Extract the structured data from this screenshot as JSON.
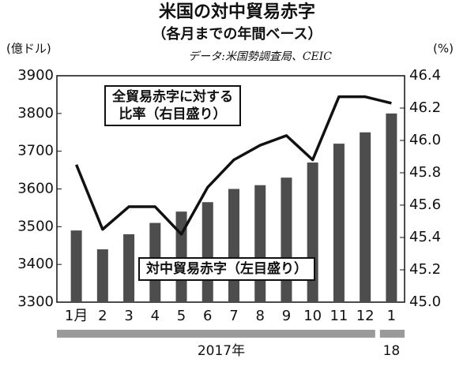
{
  "chart_data": {
    "type": "bar-line",
    "title": "米国の対中貿易赤字",
    "subtitle": "（各月までの年間ベース）",
    "source": "データ:米国勢調査局、CEIC",
    "y_unit": "(億ドル)",
    "y2_unit": "(%)",
    "categories": [
      "1月",
      "2",
      "3",
      "4",
      "5",
      "6",
      "7",
      "8",
      "9",
      "10",
      "11",
      "12",
      "1"
    ],
    "year_labels": [
      "2017年",
      "18"
    ],
    "series": [
      {
        "name": "対中貿易赤字（左目盛り）",
        "type": "bar",
        "color": "#4d4d4d",
        "values": [
          3490,
          3440,
          3480,
          3510,
          3540,
          3565,
          3600,
          3610,
          3630,
          3670,
          3720,
          3750,
          3800
        ]
      },
      {
        "name": "全貿易赤字に対する\n比率（右目盛り）",
        "type": "line",
        "color": "#111111",
        "axis": "y2",
        "values": [
          45.85,
          45.45,
          45.59,
          45.59,
          45.42,
          45.71,
          45.88,
          45.97,
          46.03,
          45.88,
          46.27,
          46.27,
          46.23
        ]
      }
    ],
    "ylim": [
      3300,
      3900
    ],
    "yticks": [
      3300,
      3400,
      3500,
      3600,
      3700,
      3800,
      3900
    ],
    "y2lim": [
      45.0,
      46.4
    ],
    "y2ticks": [
      {
        "value": 45,
        "label": "45.0"
      },
      45.2,
      45.4,
      45.6,
      45.8,
      {
        "value": 46,
        "label": "46.0"
      },
      46.2,
      46.4
    ],
    "grid": false
  }
}
